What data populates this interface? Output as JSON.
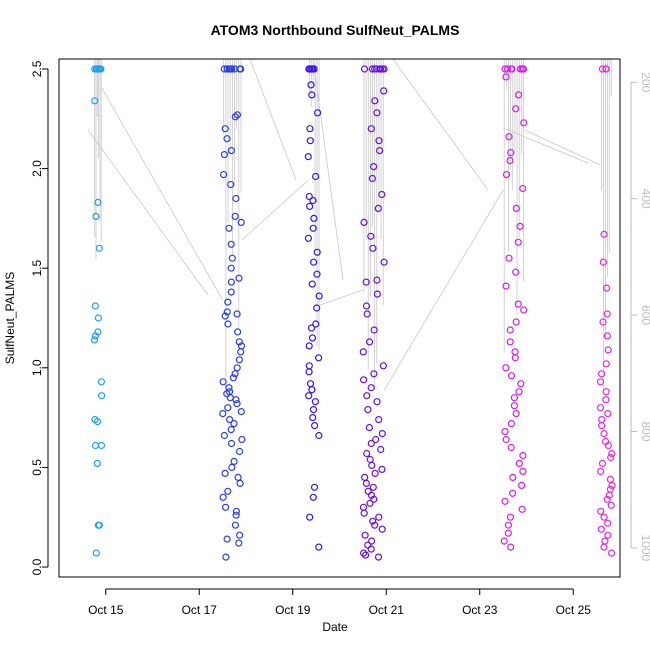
{
  "chart_data": {
    "type": "scatter",
    "title": "ATOM3 Northbound SulfNeut_PALMS",
    "xlabel": "Date",
    "ylabel": "SulfNeut_PALMS",
    "x_axis": {
      "type": "date",
      "range": [
        "2017-10-14",
        "2017-10-26"
      ],
      "ticks": [
        {
          "date": "2017-10-15",
          "label": "Oct 15"
        },
        {
          "date": "2017-10-17",
          "label": "Oct 17"
        },
        {
          "date": "2017-10-19",
          "label": "Oct 19"
        },
        {
          "date": "2017-10-21",
          "label": "Oct 21"
        },
        {
          "date": "2017-10-23",
          "label": "Oct 23"
        },
        {
          "date": "2017-10-25",
          "label": "Oct 25"
        }
      ]
    },
    "y_axis": {
      "range": [
        -0.05,
        2.55
      ],
      "ticks": [
        "0.0",
        "0.5",
        "1.0",
        "1.5",
        "2.0",
        "2.5"
      ]
    },
    "y2_axis": {
      "reversed": true,
      "range": [
        1050,
        160
      ],
      "ticks": [
        "200",
        "400",
        "600",
        "800",
        "1000"
      ]
    },
    "grid": false,
    "legend": "none",
    "colors": {
      "flight_1": "#1f9ff0",
      "flight_2": "#2a3fe0",
      "flight_3": "#3a14e6",
      "flight_4": "#6a10d8",
      "flight_5": "#d21ee6",
      "flight_6": "#e228e0",
      "track": "#c8c8c8"
    },
    "flights": [
      {
        "x_range": [
          "2017-10-14T18:00",
          "2017-10-14T22:00"
        ],
        "color": "#1f9ff0",
        "values": [
          2.5,
          2.5,
          2.5,
          2.5,
          2.5,
          2.5,
          2.5,
          2.34,
          1.83,
          1.76,
          1.6,
          1.31,
          1.25,
          1.18,
          1.16,
          1.14,
          0.93,
          0.86,
          0.74,
          0.73,
          0.61,
          0.61,
          0.52,
          0.21,
          0.21,
          0.07
        ]
      },
      {
        "x_range": [
          "2017-10-17T12:00",
          "2017-10-17T22:00"
        ],
        "color": "#2a3fe0",
        "values": [
          2.5,
          2.5,
          2.5,
          2.5,
          2.5,
          2.5,
          2.5,
          2.5,
          2.5,
          2.27,
          2.26,
          2.2,
          2.15,
          2.09,
          2.07,
          1.97,
          1.92,
          1.85,
          1.76,
          1.73,
          1.7,
          1.62,
          1.55,
          1.5,
          1.45,
          1.43,
          1.38,
          1.33,
          1.28,
          1.27,
          1.26,
          1.22,
          1.18,
          1.13,
          1.11,
          1.08,
          1.04,
          1.0,
          0.97,
          0.95,
          0.93,
          0.9,
          0.88,
          0.87,
          0.85,
          0.84,
          0.82,
          0.8,
          0.78,
          0.77,
          0.74,
          0.72,
          0.69,
          0.66,
          0.64,
          0.62,
          0.58,
          0.53,
          0.5,
          0.47,
          0.45,
          0.42,
          0.38,
          0.35,
          0.3,
          0.28,
          0.26,
          0.21,
          0.16,
          0.14,
          0.12,
          0.05
        ]
      },
      {
        "x_range": [
          "2017-10-19T08:00",
          "2017-10-19T14:00"
        ],
        "color": "#3a14e6",
        "values": [
          2.5,
          2.5,
          2.5,
          2.5,
          2.5,
          2.5,
          2.5,
          2.42,
          2.37,
          2.28,
          2.2,
          2.14,
          2.06,
          1.96,
          1.86,
          1.84,
          1.81,
          1.75,
          1.7,
          1.65,
          1.58,
          1.53,
          1.47,
          1.42,
          1.36,
          1.3,
          1.22,
          1.2,
          1.15,
          1.11,
          1.05,
          1.01,
          0.98,
          0.92,
          0.89,
          0.86,
          0.83,
          0.79,
          0.75,
          0.71,
          0.66,
          0.4,
          0.35,
          0.25,
          0.1
        ]
      },
      {
        "x_range": [
          "2017-10-20T12:00",
          "2017-10-20T23:00"
        ],
        "color": "#6a10d8",
        "values": [
          2.5,
          2.5,
          2.5,
          2.5,
          2.5,
          2.5,
          2.5,
          2.5,
          2.39,
          2.34,
          2.28,
          2.2,
          2.14,
          2.09,
          2.01,
          1.95,
          1.87,
          1.8,
          1.73,
          1.66,
          1.6,
          1.53,
          1.44,
          1.43,
          1.37,
          1.31,
          1.27,
          1.19,
          1.13,
          1.08,
          1.01,
          0.97,
          0.94,
          0.9,
          0.86,
          0.83,
          0.79,
          0.74,
          0.7,
          0.67,
          0.64,
          0.62,
          0.59,
          0.57,
          0.54,
          0.51,
          0.49,
          0.47,
          0.45,
          0.42,
          0.4,
          0.38,
          0.36,
          0.34,
          0.32,
          0.3,
          0.27,
          0.25,
          0.23,
          0.21,
          0.19,
          0.16,
          0.13,
          0.11,
          0.09,
          0.07,
          0.06,
          0.05
        ]
      },
      {
        "x_range": [
          "2017-10-23T12:00",
          "2017-10-23T23:00"
        ],
        "color": "#d21ee6",
        "values": [
          2.5,
          2.5,
          2.5,
          2.5,
          2.5,
          2.5,
          2.5,
          2.5,
          2.46,
          2.37,
          2.3,
          2.23,
          2.16,
          2.08,
          2.04,
          1.97,
          1.9,
          1.8,
          1.71,
          1.63,
          1.55,
          1.48,
          1.41,
          1.32,
          1.29,
          1.23,
          1.19,
          1.13,
          1.08,
          1.05,
          1.0,
          0.96,
          0.92,
          0.88,
          0.85,
          0.81,
          0.77,
          0.72,
          0.68,
          0.64,
          0.6,
          0.56,
          0.52,
          0.48,
          0.45,
          0.41,
          0.37,
          0.33,
          0.29,
          0.25,
          0.21,
          0.17,
          0.13,
          0.1
        ]
      },
      {
        "x_range": [
          "2017-10-25T14:00",
          "2017-10-25T20:00"
        ],
        "color": "#e228e0",
        "values": [
          2.5,
          2.5,
          2.5,
          1.67,
          1.53,
          1.4,
          1.27,
          1.23,
          1.16,
          1.09,
          1.02,
          0.97,
          0.93,
          0.88,
          0.84,
          0.8,
          0.77,
          0.74,
          0.71,
          0.67,
          0.63,
          0.61,
          0.57,
          0.55,
          0.52,
          0.48,
          0.44,
          0.41,
          0.39,
          0.36,
          0.34,
          0.31,
          0.28,
          0.25,
          0.22,
          0.19,
          0.16,
          0.13,
          0.1,
          0.07
        ]
      }
    ]
  }
}
